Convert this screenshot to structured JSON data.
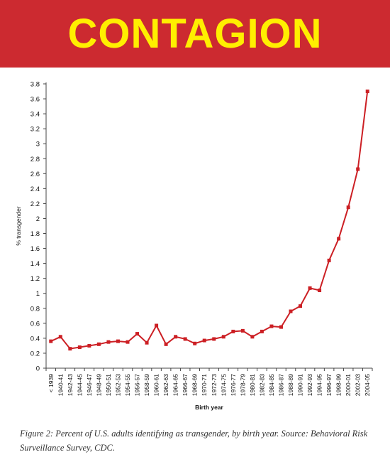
{
  "banner": {
    "title": "CONTAGION",
    "bg_color": "#cc2a30",
    "text_color": "#ffef00"
  },
  "caption": "Figure 2: Percent of U.S. adults identifying as transgender, by birth year. Source: Behavioral Risk Surveillance Survey, CDC.",
  "chart_data": {
    "type": "line",
    "title": "",
    "xlabel": "Birth year",
    "ylabel": "% transgender",
    "ylim": [
      0,
      3.8
    ],
    "yticks": [
      "0",
      "0.2",
      "0.4",
      "0.6",
      "0.8",
      "1",
      "1.2",
      "1.4",
      "1.6",
      "1.8",
      "2",
      "2.2",
      "2.4",
      "2.6",
      "2.8",
      "3",
      "3.2",
      "3.4",
      "3.6",
      "3.8"
    ],
    "grid": false,
    "legend": "none",
    "line_color": "#cc1f24",
    "categories": [
      "< 1939",
      "1940-41",
      "1942-43",
      "1944-45",
      "1946-47",
      "1948-49",
      "1950-51",
      "1952-53",
      "1954-55",
      "1956-57",
      "1958-59",
      "1960-61",
      "1962-63",
      "1964-65",
      "1966-67",
      "1968-69",
      "1970-71",
      "1972-73",
      "1974-75",
      "1976-77",
      "1978-79",
      "1980-81",
      "1982-83",
      "1984-85",
      "1986-87",
      "1988-89",
      "1990-91",
      "1992-93",
      "1994-95",
      "1996-97",
      "1998-99",
      "2000-01",
      "2002-03",
      "2004-05"
    ],
    "series": [
      {
        "values": [
          0.36,
          0.42,
          0.26,
          0.28,
          0.3,
          0.32,
          0.35,
          0.36,
          0.35,
          0.46,
          0.34,
          0.57,
          0.32,
          0.42,
          0.39,
          0.33,
          0.37,
          0.39,
          0.42,
          0.49,
          0.5,
          0.42,
          0.49,
          0.56,
          0.55,
          0.76,
          0.83,
          1.07,
          1.04,
          1.44,
          1.73,
          2.15,
          2.66,
          3.7
        ]
      }
    ]
  }
}
